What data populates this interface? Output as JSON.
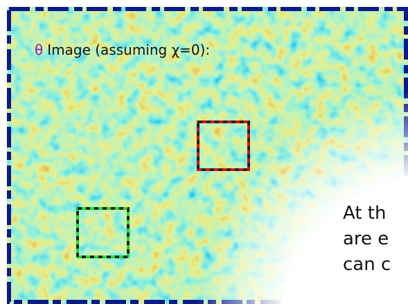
{
  "title": {
    "symbol": "θ",
    "text": "Image (assuming χ=0):"
  },
  "body_lines": [
    "At th",
    "are e",
    "can c"
  ]
}
